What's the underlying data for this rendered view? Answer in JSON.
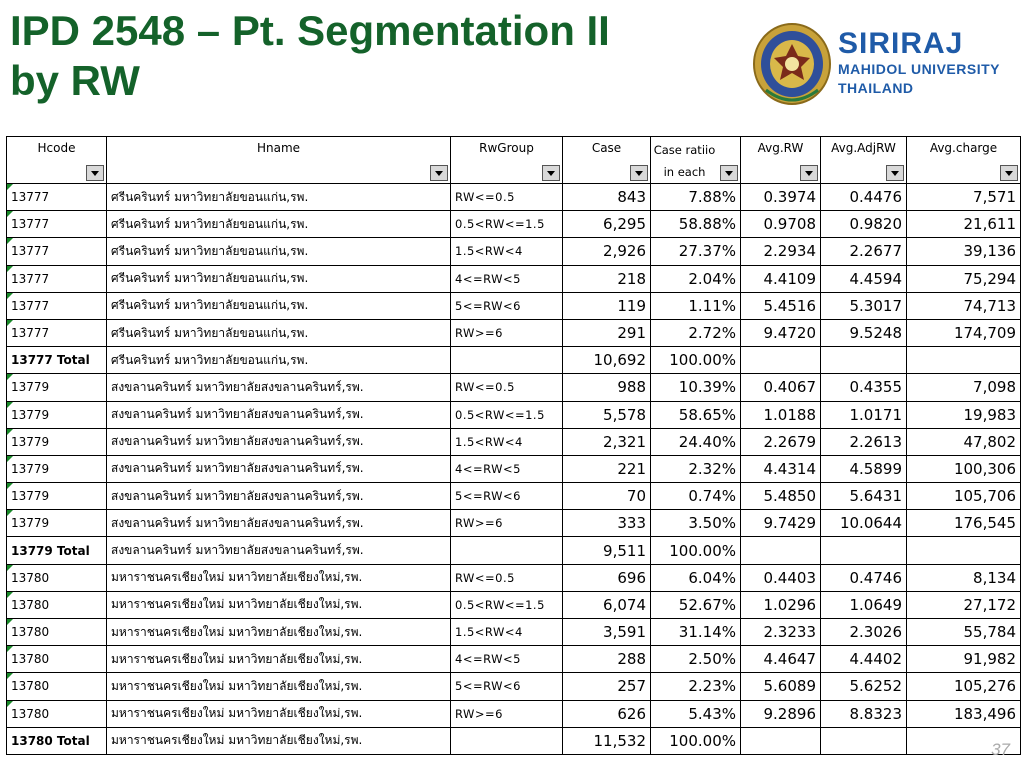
{
  "title": {
    "line1": "IPD 2548 – Pt. Segmentation II",
    "line2": "by RW"
  },
  "logo": {
    "line1": "SIRIRAJ",
    "line2": "MAHIDOL UNIVERSITY",
    "line3": "THAILAND",
    "seal_icon": "siriraj-seal-icon"
  },
  "colors": {
    "title": "#14622a",
    "logo_text": "#1f5ba8",
    "cell_marker": "#1a8a2a"
  },
  "table": {
    "headers": [
      {
        "label": "Hcode"
      },
      {
        "label": "Hname"
      },
      {
        "label": "RwGroup"
      },
      {
        "label": "Case"
      },
      {
        "label": "Case ratiio in each"
      },
      {
        "label": "Avg.RW"
      },
      {
        "label": "Avg.AdjRW"
      },
      {
        "label": "Avg.charge"
      }
    ],
    "rows": [
      {
        "hcode": "13777",
        "hname": "ศรีนครินทร์    มหาวิทยาลัยขอนแก่น,รพ.",
        "group": "RW<=0.5",
        "case": "843",
        "ratio": "7.88%",
        "rw": "0.3974",
        "adj": "0.4476",
        "charge": "7,571",
        "total": false
      },
      {
        "hcode": "13777",
        "hname": "ศรีนครินทร์    มหาวิทยาลัยขอนแก่น,รพ.",
        "group": "0.5<RW<=1.5",
        "case": "6,295",
        "ratio": "58.88%",
        "rw": "0.9708",
        "adj": "0.9820",
        "charge": "21,611",
        "total": false
      },
      {
        "hcode": "13777",
        "hname": "ศรีนครินทร์    มหาวิทยาลัยขอนแก่น,รพ.",
        "group": "1.5<RW<4",
        "case": "2,926",
        "ratio": "27.37%",
        "rw": "2.2934",
        "adj": "2.2677",
        "charge": "39,136",
        "total": false
      },
      {
        "hcode": "13777",
        "hname": "ศรีนครินทร์    มหาวิทยาลัยขอนแก่น,รพ.",
        "group": "4<=RW<5",
        "case": "218",
        "ratio": "2.04%",
        "rw": "4.4109",
        "adj": "4.4594",
        "charge": "75,294",
        "total": false
      },
      {
        "hcode": "13777",
        "hname": "ศรีนครินทร์    มหาวิทยาลัยขอนแก่น,รพ.",
        "group": "5<=RW<6",
        "case": "119",
        "ratio": "1.11%",
        "rw": "5.4516",
        "adj": "5.3017",
        "charge": "74,713",
        "total": false
      },
      {
        "hcode": "13777",
        "hname": "ศรีนครินทร์    มหาวิทยาลัยขอนแก่น,รพ.",
        "group": "RW>=6",
        "case": "291",
        "ratio": "2.72%",
        "rw": "9.4720",
        "adj": "9.5248",
        "charge": "174,709",
        "total": false
      },
      {
        "hcode": "13777 Total",
        "hname": "ศรีนครินทร์    มหาวิทยาลัยขอนแก่น,รพ.",
        "group": "",
        "case": "10,692",
        "ratio": "100.00%",
        "rw": "",
        "adj": "",
        "charge": "",
        "total": true
      },
      {
        "hcode": "13779",
        "hname": "สงขลานครินทร์  มหาวิทยาลัยสงขลานครินทร์,รพ.",
        "group": "RW<=0.5",
        "case": "988",
        "ratio": "10.39%",
        "rw": "0.4067",
        "adj": "0.4355",
        "charge": "7,098",
        "total": false
      },
      {
        "hcode": "13779",
        "hname": "สงขลานครินทร์  มหาวิทยาลัยสงขลานครินทร์,รพ.",
        "group": "0.5<RW<=1.5",
        "case": "5,578",
        "ratio": "58.65%",
        "rw": "1.0188",
        "adj": "1.0171",
        "charge": "19,983",
        "total": false
      },
      {
        "hcode": "13779",
        "hname": "สงขลานครินทร์  มหาวิทยาลัยสงขลานครินทร์,รพ.",
        "group": "1.5<RW<4",
        "case": "2,321",
        "ratio": "24.40%",
        "rw": "2.2679",
        "adj": "2.2613",
        "charge": "47,802",
        "total": false
      },
      {
        "hcode": "13779",
        "hname": "สงขลานครินทร์  มหาวิทยาลัยสงขลานครินทร์,รพ.",
        "group": "4<=RW<5",
        "case": "221",
        "ratio": "2.32%",
        "rw": "4.4314",
        "adj": "4.5899",
        "charge": "100,306",
        "total": false
      },
      {
        "hcode": "13779",
        "hname": "สงขลานครินทร์  มหาวิทยาลัยสงขลานครินทร์,รพ.",
        "group": "5<=RW<6",
        "case": "70",
        "ratio": "0.74%",
        "rw": "5.4850",
        "adj": "5.6431",
        "charge": "105,706",
        "total": false
      },
      {
        "hcode": "13779",
        "hname": "สงขลานครินทร์  มหาวิทยาลัยสงขลานครินทร์,รพ.",
        "group": "RW>=6",
        "case": "333",
        "ratio": "3.50%",
        "rw": "9.7429",
        "adj": "10.0644",
        "charge": "176,545",
        "total": false
      },
      {
        "hcode": "13779 Total",
        "hname": "สงขลานครินทร์  มหาวิทยาลัยสงขลานครินทร์,รพ.",
        "group": "",
        "case": "9,511",
        "ratio": "100.00%",
        "rw": "",
        "adj": "",
        "charge": "",
        "total": true
      },
      {
        "hcode": "13780",
        "hname": "มหาราชนครเชียงใหม่  มหาวิทยาลัยเชียงใหม่,รพ.",
        "group": "RW<=0.5",
        "case": "696",
        "ratio": "6.04%",
        "rw": "0.4403",
        "adj": "0.4746",
        "charge": "8,134",
        "total": false
      },
      {
        "hcode": "13780",
        "hname": "มหาราชนครเชียงใหม่  มหาวิทยาลัยเชียงใหม่,รพ.",
        "group": "0.5<RW<=1.5",
        "case": "6,074",
        "ratio": "52.67%",
        "rw": "1.0296",
        "adj": "1.0649",
        "charge": "27,172",
        "total": false
      },
      {
        "hcode": "13780",
        "hname": "มหาราชนครเชียงใหม่  มหาวิทยาลัยเชียงใหม่,รพ.",
        "group": "1.5<RW<4",
        "case": "3,591",
        "ratio": "31.14%",
        "rw": "2.3233",
        "adj": "2.3026",
        "charge": "55,784",
        "total": false
      },
      {
        "hcode": "13780",
        "hname": "มหาราชนครเชียงใหม่  มหาวิทยาลัยเชียงใหม่,รพ.",
        "group": "4<=RW<5",
        "case": "288",
        "ratio": "2.50%",
        "rw": "4.4647",
        "adj": "4.4402",
        "charge": "91,982",
        "total": false
      },
      {
        "hcode": "13780",
        "hname": "มหาราชนครเชียงใหม่  มหาวิทยาลัยเชียงใหม่,รพ.",
        "group": "5<=RW<6",
        "case": "257",
        "ratio": "2.23%",
        "rw": "5.6089",
        "adj": "5.6252",
        "charge": "105,276",
        "total": false
      },
      {
        "hcode": "13780",
        "hname": "มหาราชนครเชียงใหม่  มหาวิทยาลัยเชียงใหม่,รพ.",
        "group": "RW>=6",
        "case": "626",
        "ratio": "5.43%",
        "rw": "9.2896",
        "adj": "8.8323",
        "charge": "183,496",
        "total": false
      },
      {
        "hcode": "13780 Total",
        "hname": "มหาราชนครเชียงใหม่  มหาวิทยาลัยเชียงใหม่,รพ.",
        "group": "",
        "case": "11,532",
        "ratio": "100.00%",
        "rw": "",
        "adj": "",
        "charge": "",
        "total": true
      }
    ]
  },
  "page_number": "37"
}
